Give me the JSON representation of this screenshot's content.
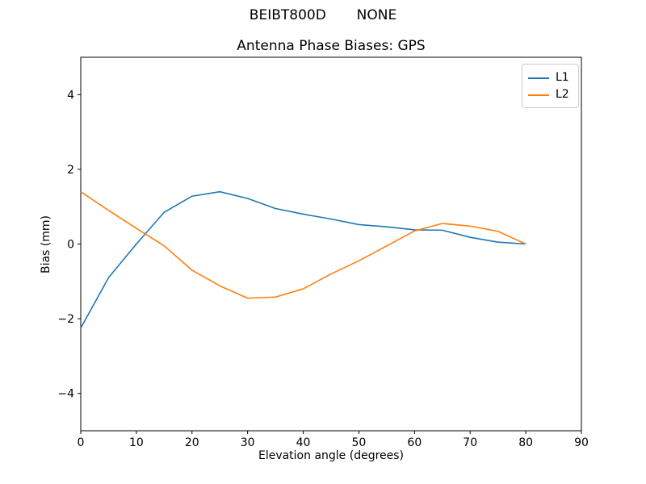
{
  "figure": {
    "suptitle": "BEIBT800D       NONE",
    "background": "#ffffff",
    "text_color": "#000000"
  },
  "chart_data": {
    "type": "line",
    "title": "Antenna Phase Biases: GPS",
    "xlabel": "Elevation angle (degrees)",
    "ylabel": "Bias (mm)",
    "xlim": [
      0,
      90
    ],
    "ylim": [
      -5,
      5
    ],
    "xticks": [
      0,
      10,
      20,
      30,
      40,
      50,
      60,
      70,
      80,
      90
    ],
    "yticks": [
      -4,
      -2,
      0,
      2,
      4
    ],
    "grid": false,
    "legend": {
      "position": "upper right"
    },
    "x": [
      0,
      5,
      10,
      15,
      20,
      25,
      30,
      35,
      40,
      45,
      50,
      55,
      60,
      65,
      70,
      75,
      80
    ],
    "series": [
      {
        "name": "L1",
        "color": "#1f77b4",
        "values": [
          -2.25,
          -0.9,
          0.0,
          0.85,
          1.28,
          1.4,
          1.22,
          0.95,
          0.8,
          0.67,
          0.52,
          0.46,
          0.38,
          0.37,
          0.18,
          0.05,
          0.0
        ]
      },
      {
        "name": "L2",
        "color": "#ff7f0e",
        "values": [
          1.4,
          0.9,
          0.42,
          -0.05,
          -0.7,
          -1.12,
          -1.45,
          -1.42,
          -1.2,
          -0.8,
          -0.45,
          -0.05,
          0.35,
          0.55,
          0.48,
          0.34,
          0.0
        ]
      }
    ]
  }
}
